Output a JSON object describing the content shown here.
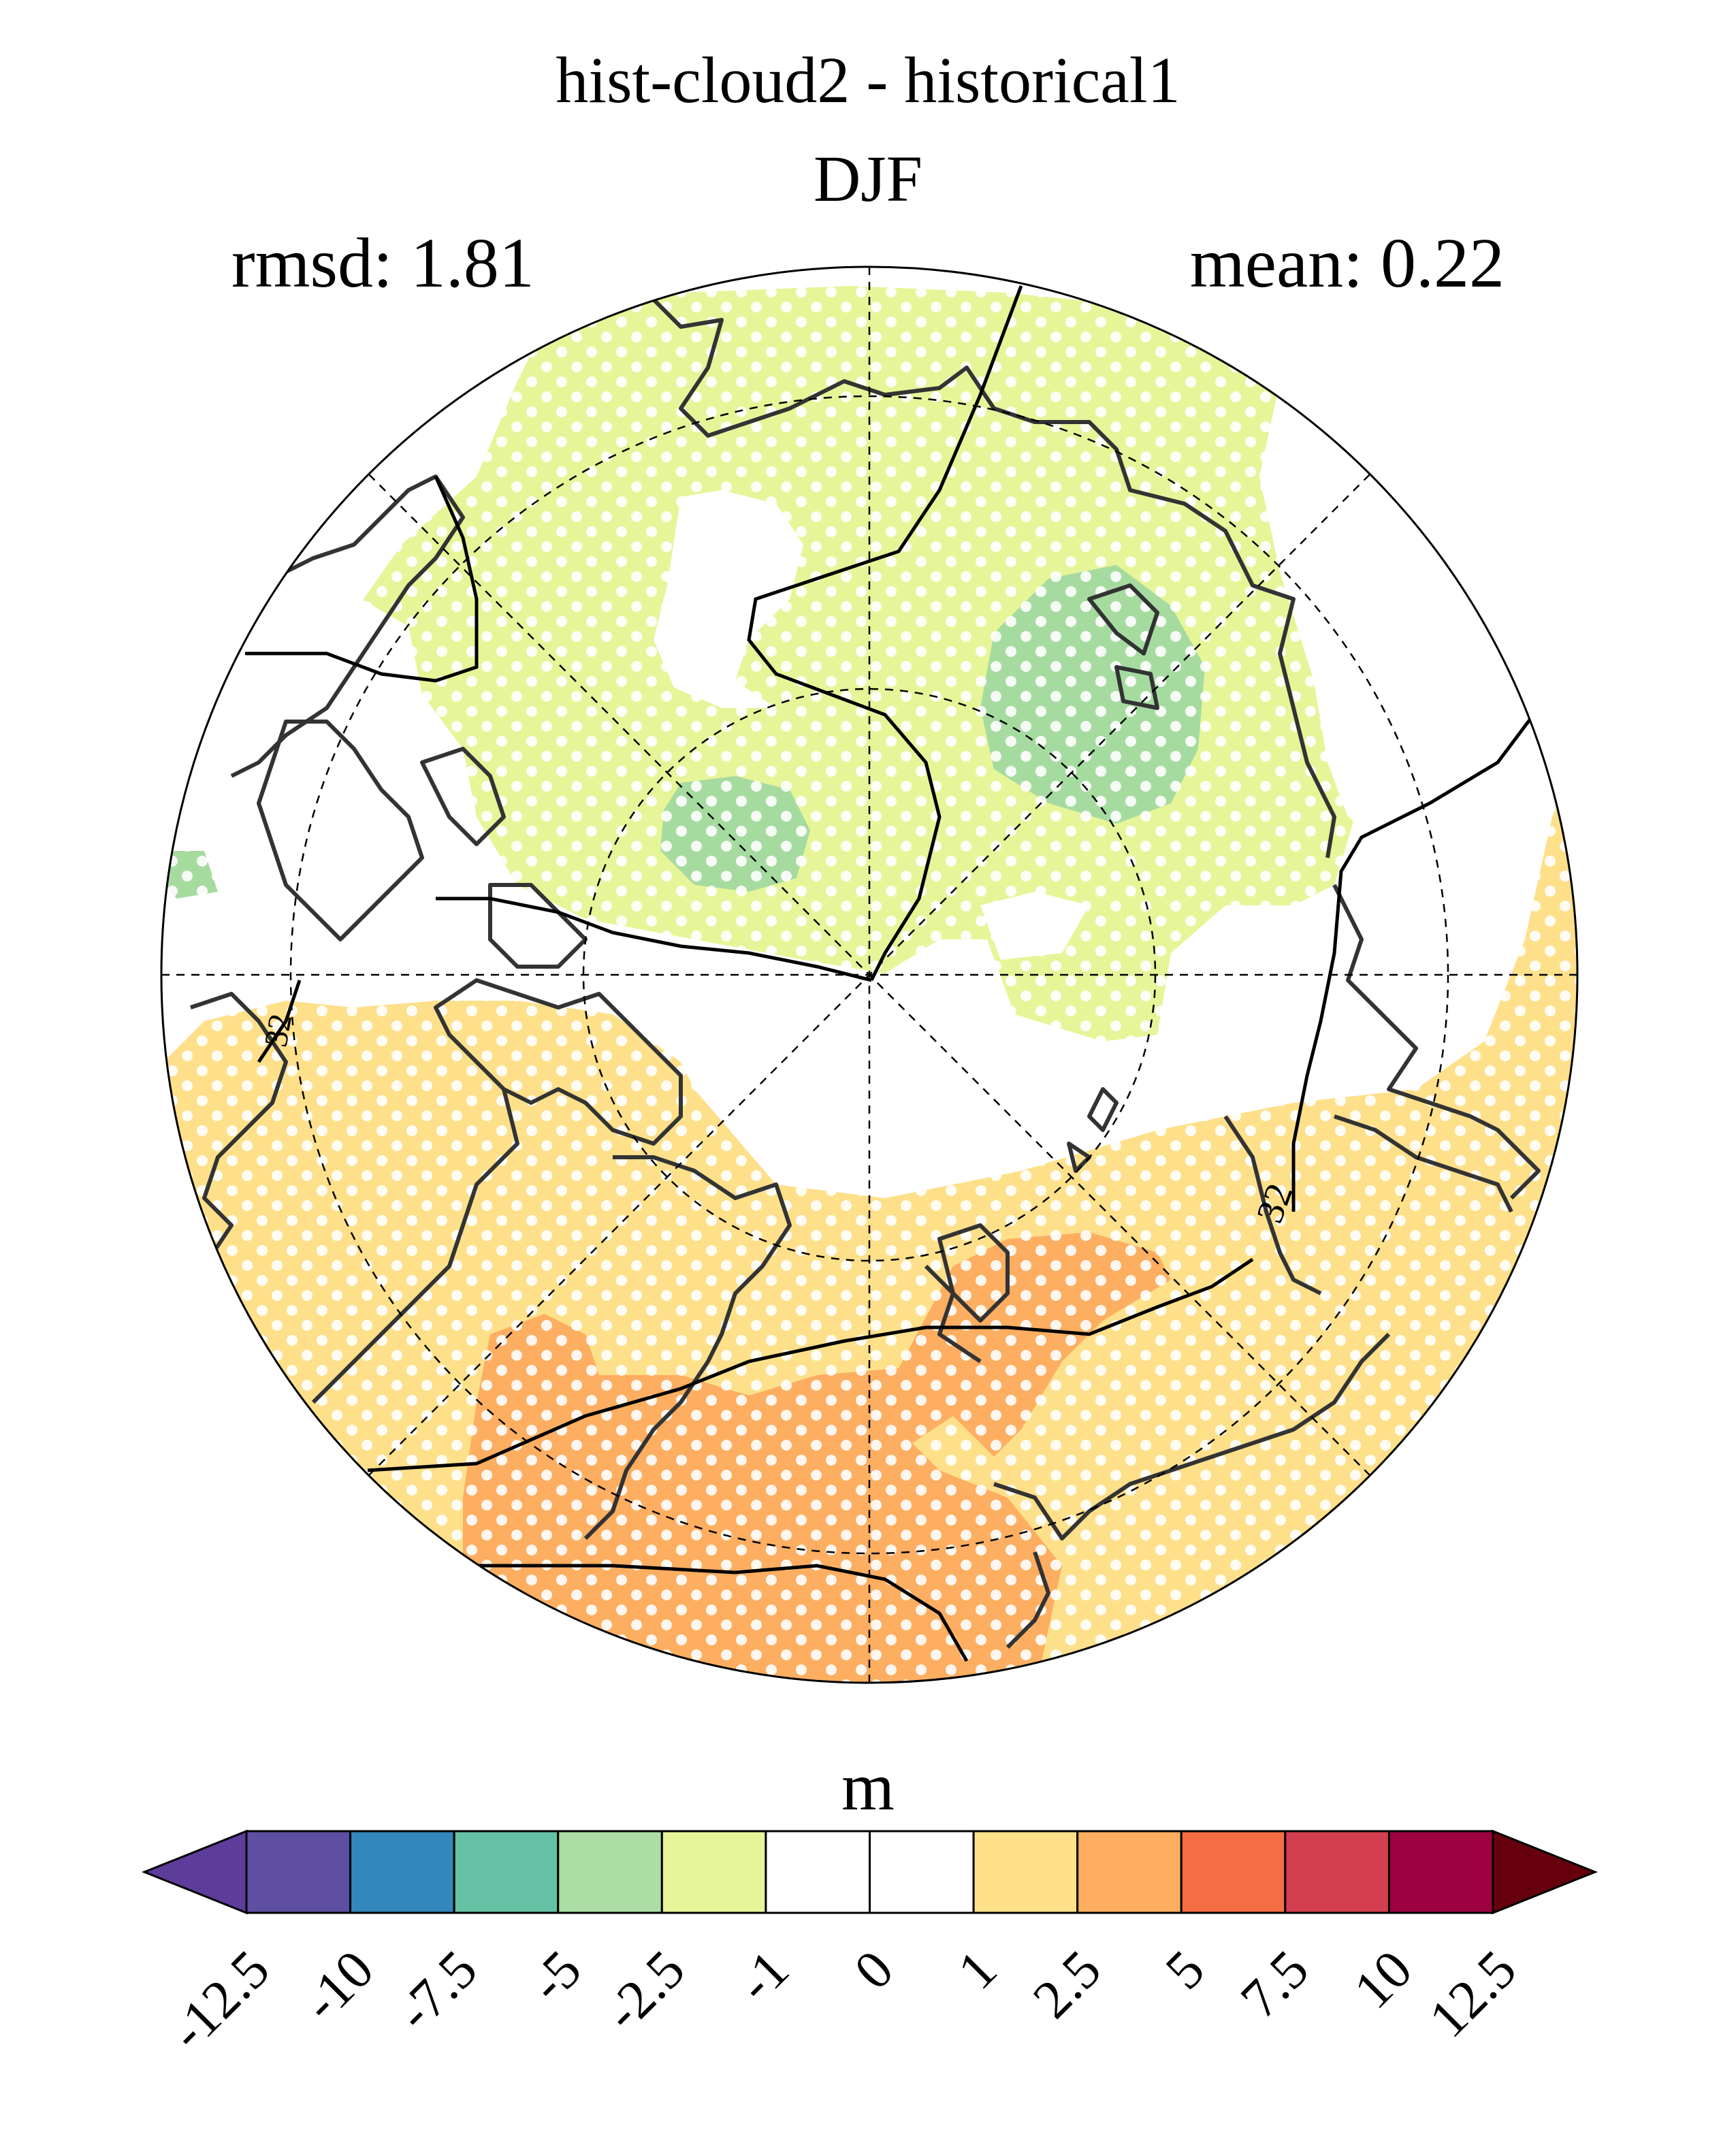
{
  "header": {
    "title_line1": "hist-cloud2 - historical1",
    "title_line2": "DJF",
    "rmsd_label": "rmsd: 1.81",
    "mean_label": "mean: 0.22"
  },
  "map": {
    "projection": "north polar stereographic",
    "contour_label": "32",
    "fills": {
      "green_dark": "#a6dba0",
      "green_light": "#e6f598",
      "orange_light": "#fee08b",
      "orange": "#fdae61",
      "stipple": "#ffffff",
      "coast": "#333333"
    }
  },
  "colorbar": {
    "unit": "m",
    "levels": [
      "-12.5",
      "-10",
      "-7.5",
      "-5",
      "-2.5",
      "-1",
      "0",
      "1",
      "2.5",
      "5",
      "7.5",
      "10",
      "12.5"
    ],
    "colors": [
      "#5e3c99",
      "#5e4fa2",
      "#3288bd",
      "#66c2a5",
      "#abdda4",
      "#e6f598",
      "#ffffff",
      "#ffffff",
      "#fee08b",
      "#fdae61",
      "#f46d43",
      "#d53e4f",
      "#9e0142",
      "#67000d"
    ]
  }
}
